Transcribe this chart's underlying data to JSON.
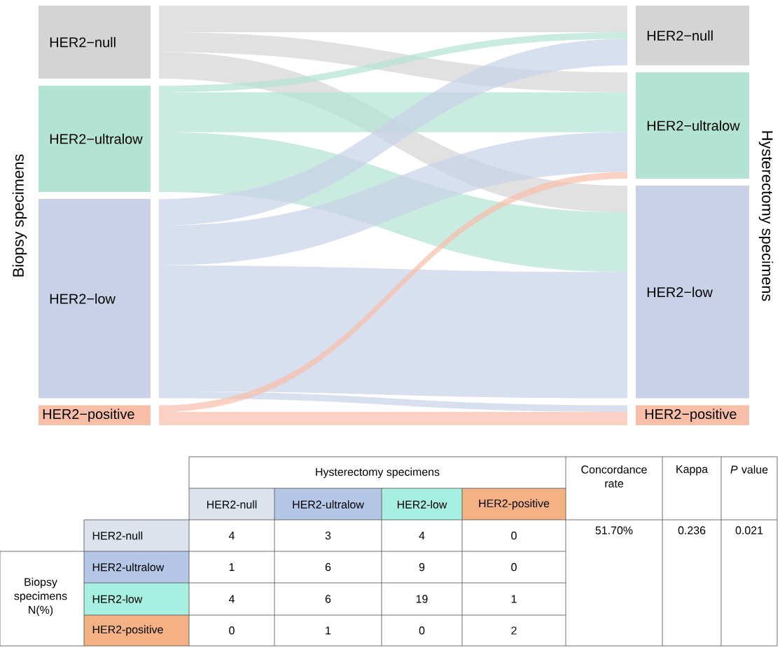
{
  "chart_data": [
    {
      "type": "other",
      "ylabel": "Biopsy specimens",
      "y2label": "Hysterectomy specimens",
      "y_categories": [
        "HER2−null",
        "HER2−ultralow",
        "HER2−low",
        "HER2−positive"
      ],
      "categories": [
        "HER2−null",
        "HER2−ultralow",
        "HER2−low",
        "HER2−positive"
      ],
      "colors": [
        "#d4d4d4",
        "#b3e3d3",
        "#c8d1e7",
        "#f8bea8"
      ]
    },
    {
      "type": "heatmap",
      "title": "Hysterectomy specimens",
      "ylabel": "Biopsy specimens N(%)",
      "categories": [
        "HER2-null",
        "HER2-ultralow",
        "HER2-low",
        "HER2-positive"
      ],
      "y_categories": [
        "HER2-null",
        "HER2-ultralow",
        "HER2-low",
        "HER2-positive"
      ],
      "cells": [
        [
          4,
          3,
          4,
          0
        ],
        [
          1,
          6,
          9,
          0
        ],
        [
          4,
          6,
          19,
          1
        ],
        [
          0,
          1,
          0,
          2
        ]
      ],
      "colors": [
        "#dce3ed",
        "#b4c7e7",
        "#a6efe1",
        "#f4b183"
      ],
      "data_labels": true,
      "annotations": [
        "Concordance rate",
        "51.70%",
        "Kappa",
        "0.236",
        "*P* value",
        "0.021"
      ]
    }
  ]
}
